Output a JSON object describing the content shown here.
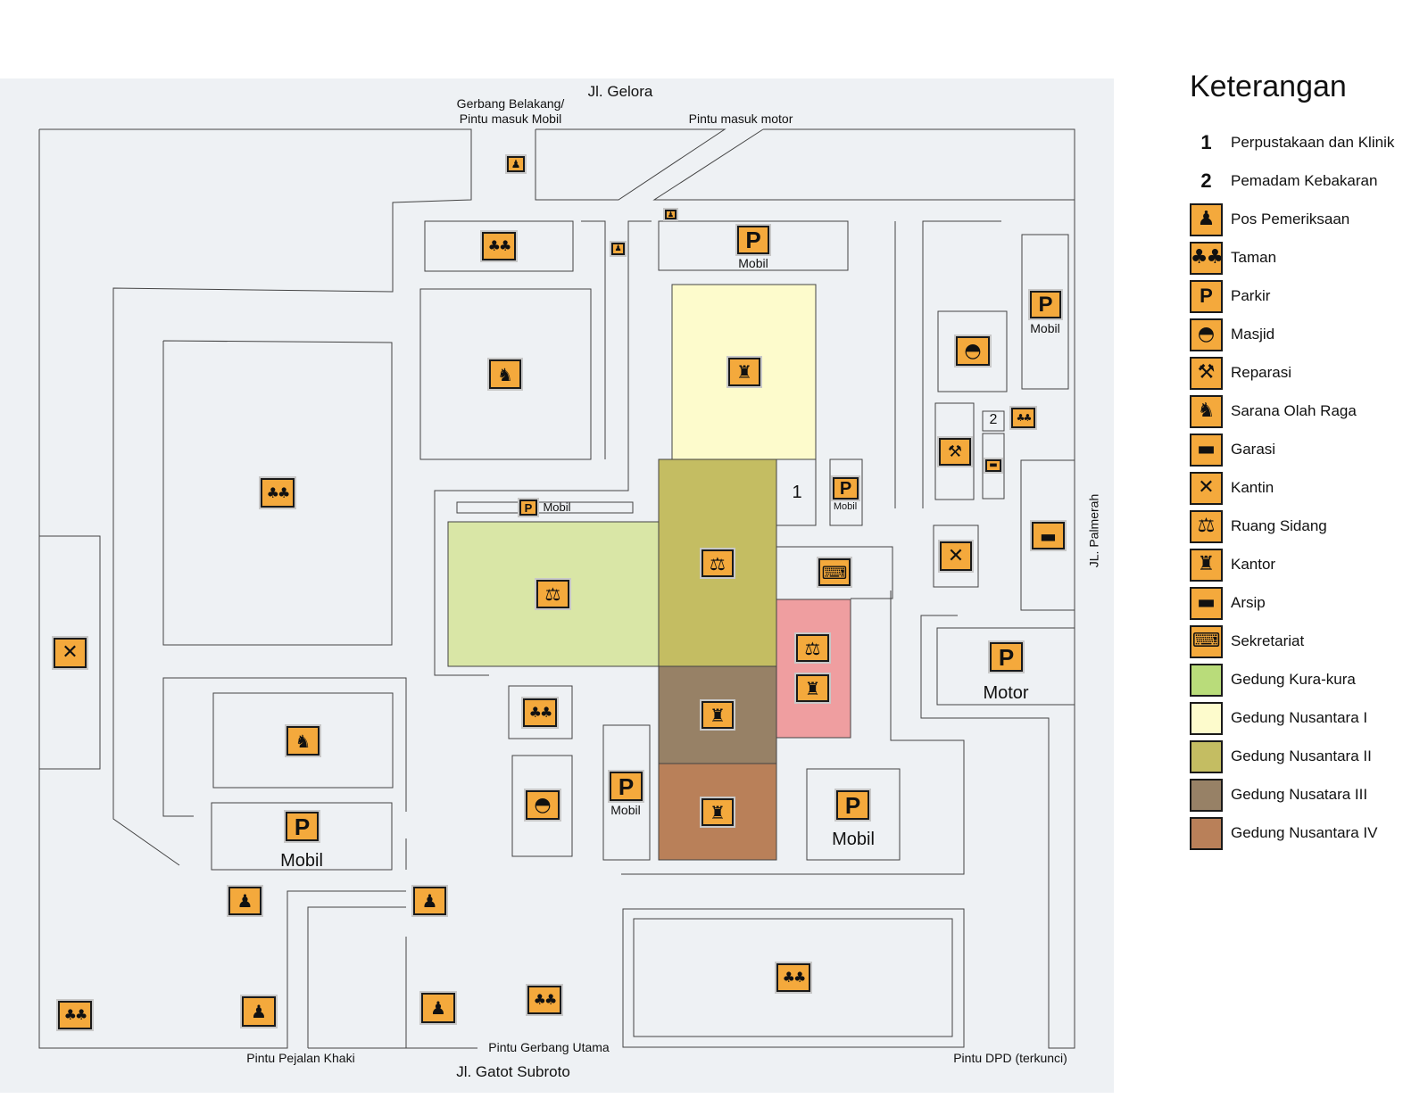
{
  "map": {
    "roads": {
      "north": "Jl. Gelora",
      "east": "JL. Palmerah",
      "south": "Jl. Gatot Subroto"
    },
    "gates": {
      "back_gate": "Gerbang Belakang/",
      "back_gate_2": "Pintu masuk Mobil",
      "motor_gate": "Pintu masuk motor",
      "main_gate": "Pintu Gerbang Utama",
      "pedestrian_gate": "Pintu Pejalan Khaki",
      "dpd_gate": "Pintu DPD (terkunci)"
    },
    "parking_labels": {
      "mobil": "Mobil",
      "motor": "Motor"
    },
    "markers": {
      "one": "1",
      "two": "2"
    },
    "building_colors": {
      "kura_kura": "#d9e6a6",
      "nusantara_1": "#fdfbcc",
      "nusantara_2": "#c4bd62",
      "nusantara_3": "#978166",
      "nusantara_4": "#b98059",
      "pink": "#ef9ea0"
    },
    "icon_color": "#f4a93c"
  },
  "legend": {
    "title": "Keterangan",
    "items": [
      {
        "key": "1",
        "label": "Perpustakaan dan Klinik"
      },
      {
        "key": "2",
        "label": "Pemadam Kebakaran"
      },
      {
        "icon": "pos",
        "label": "Pos Pemeriksaan"
      },
      {
        "icon": "taman",
        "label": "Taman"
      },
      {
        "icon": "parkir",
        "label": "Parkir"
      },
      {
        "icon": "masjid",
        "label": "Masjid"
      },
      {
        "icon": "reparasi",
        "label": "Reparasi"
      },
      {
        "icon": "olahraga",
        "label": "Sarana Olah Raga"
      },
      {
        "icon": "garasi",
        "label": "Garasi"
      },
      {
        "icon": "kantin",
        "label": "Kantin"
      },
      {
        "icon": "sidang",
        "label": "Ruang Sidang"
      },
      {
        "icon": "kantor",
        "label": "Kantor"
      },
      {
        "icon": "arsip",
        "label": "Arsip"
      },
      {
        "icon": "sekretariat",
        "label": "Sekretariat"
      },
      {
        "color": "#b9dc7a",
        "label": "Gedung Kura-kura"
      },
      {
        "color": "#fdfbcc",
        "label": "Gedung Nusantara I"
      },
      {
        "color": "#c4bd62",
        "label": "Gedung Nusantara II"
      },
      {
        "color": "#978166",
        "label": "Gedung Nusatara III"
      },
      {
        "color": "#b98059",
        "label": "Gedung Nusantara IV"
      }
    ]
  }
}
